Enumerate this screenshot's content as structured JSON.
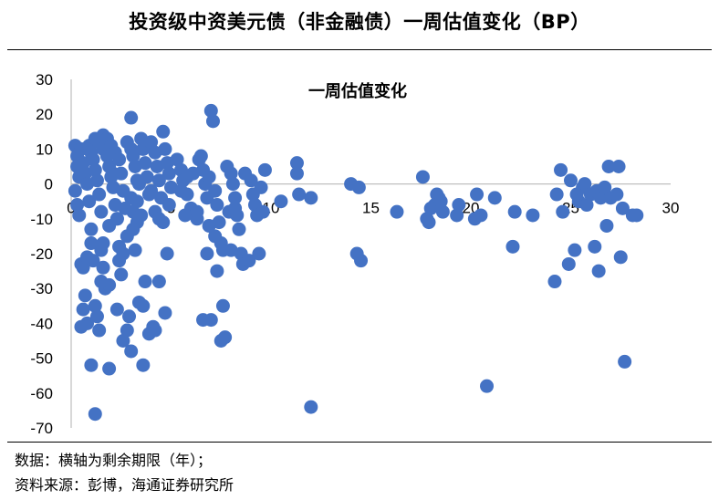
{
  "page_title": "投资级中资美元债（非金融债）一周估值变化（BP）",
  "footnotes": {
    "data_note": "数据：横轴为剩余期限（年）；",
    "source_note": "资料来源：彭博，海通证券研究所"
  },
  "chart_data": {
    "type": "scatter",
    "title": "一周估值变化",
    "xlabel": "",
    "ylabel": "",
    "xlim": [
      0,
      30
    ],
    "ylim": [
      -70,
      30
    ],
    "x_ticks": [
      0,
      5,
      10,
      15,
      20,
      25,
      30
    ],
    "y_ticks": [
      30,
      20,
      10,
      0,
      -10,
      -20,
      -30,
      -40,
      -50,
      -60,
      -70
    ],
    "grid": false,
    "legend": "none",
    "marker_color": "#4472C4",
    "points": [
      [
        0.2,
        11
      ],
      [
        0.3,
        8
      ],
      [
        0.3,
        5
      ],
      [
        0.4,
        2
      ],
      [
        0.2,
        -2
      ],
      [
        0.4,
        -9
      ],
      [
        0.5,
        -23
      ],
      [
        0.6,
        -24
      ],
      [
        0.7,
        -32
      ],
      [
        0.8,
        -40
      ],
      [
        0.5,
        -41
      ],
      [
        0.5,
        10
      ],
      [
        0.6,
        6
      ],
      [
        0.7,
        3
      ],
      [
        0.8,
        0
      ],
      [
        0.9,
        -5
      ],
      [
        1.0,
        -13
      ],
      [
        1.0,
        -17
      ],
      [
        1.1,
        -22
      ],
      [
        1.2,
        -35
      ],
      [
        1.3,
        -38
      ],
      [
        1.2,
        -66
      ],
      [
        0.9,
        11
      ],
      [
        1.0,
        9
      ],
      [
        1.1,
        7
      ],
      [
        1.2,
        4
      ],
      [
        1.3,
        1
      ],
      [
        1.4,
        -3
      ],
      [
        1.5,
        -8
      ],
      [
        1.5,
        -19
      ],
      [
        1.6,
        -24
      ],
      [
        1.7,
        -30
      ],
      [
        1.4,
        -42
      ],
      [
        1.2,
        13
      ],
      [
        1.4,
        12
      ],
      [
        1.6,
        10
      ],
      [
        1.8,
        8
      ],
      [
        1.9,
        5
      ],
      [
        2.0,
        2
      ],
      [
        2.1,
        -1
      ],
      [
        2.2,
        -6
      ],
      [
        2.3,
        -10
      ],
      [
        2.4,
        -18
      ],
      [
        1.9,
        -29
      ],
      [
        1.6,
        14
      ],
      [
        1.8,
        13
      ],
      [
        2.0,
        11
      ],
      [
        2.2,
        9
      ],
      [
        2.4,
        7
      ],
      [
        2.5,
        3
      ],
      [
        2.6,
        -2
      ],
      [
        2.7,
        -7
      ],
      [
        2.8,
        -15
      ],
      [
        2.3,
        -36
      ],
      [
        1.9,
        -53
      ],
      [
        2.8,
        12
      ],
      [
        3.0,
        10
      ],
      [
        3.1,
        8
      ],
      [
        3.2,
        5
      ],
      [
        3.3,
        1
      ],
      [
        3.0,
        -4
      ],
      [
        3.1,
        -8
      ],
      [
        3.3,
        -11
      ],
      [
        2.6,
        -20
      ],
      [
        2.5,
        -26
      ],
      [
        2.9,
        -38
      ],
      [
        2.8,
        -42
      ],
      [
        3.0,
        -48
      ],
      [
        3.5,
        13
      ],
      [
        3.6,
        10
      ],
      [
        3.7,
        6
      ],
      [
        3.8,
        2
      ],
      [
        3.9,
        -3
      ],
      [
        3.5,
        -9
      ],
      [
        3.2,
        -19
      ],
      [
        3.4,
        -34
      ],
      [
        3.6,
        -35
      ],
      [
        3.6,
        -52
      ],
      [
        3.4,
        0
      ],
      [
        3.0,
        19
      ],
      [
        3.7,
        -28
      ],
      [
        4.0,
        12
      ],
      [
        4.2,
        9
      ],
      [
        4.3,
        5
      ],
      [
        4.4,
        1
      ],
      [
        4.5,
        -4
      ],
      [
        4.2,
        -8
      ],
      [
        4.1,
        -41
      ],
      [
        4.6,
        15
      ],
      [
        4.7,
        10
      ],
      [
        4.8,
        6
      ],
      [
        4.9,
        3
      ],
      [
        5.0,
        -1
      ],
      [
        4.9,
        -6
      ],
      [
        4.6,
        -11
      ],
      [
        4.8,
        -20
      ],
      [
        4.4,
        -28
      ],
      [
        4.7,
        -37
      ],
      [
        4.2,
        -42
      ],
      [
        5.3,
        7
      ],
      [
        5.5,
        4
      ],
      [
        5.6,
        1
      ],
      [
        5.8,
        -3
      ],
      [
        6.0,
        -7
      ],
      [
        6.2,
        -9
      ],
      [
        6.3,
        -10
      ],
      [
        6.5,
        8
      ],
      [
        6.6,
        4
      ],
      [
        6.7,
        0
      ],
      [
        6.8,
        -4
      ],
      [
        7.0,
        21
      ],
      [
        7.1,
        18
      ],
      [
        6.9,
        2
      ],
      [
        7.2,
        -2
      ],
      [
        7.3,
        -6
      ],
      [
        7.4,
        -11
      ],
      [
        7.5,
        -17
      ],
      [
        7.3,
        -25
      ],
      [
        7.6,
        -19
      ],
      [
        7.6,
        -35
      ],
      [
        7.7,
        -44
      ],
      [
        7.5,
        -45
      ],
      [
        6.8,
        -20
      ],
      [
        6.6,
        -39
      ],
      [
        7.0,
        -39
      ],
      [
        6.9,
        -12
      ],
      [
        7.8,
        5
      ],
      [
        8.0,
        3
      ],
      [
        8.1,
        0
      ],
      [
        8.2,
        -4
      ],
      [
        8.3,
        -9
      ],
      [
        8.4,
        -13
      ],
      [
        8.5,
        -20
      ],
      [
        8.6,
        -23
      ],
      [
        8.9,
        -22
      ],
      [
        8.7,
        3
      ],
      [
        9.0,
        1
      ],
      [
        9.1,
        -3
      ],
      [
        9.2,
        -6
      ],
      [
        9.3,
        -9
      ],
      [
        9.4,
        -20
      ],
      [
        9.6,
        -8
      ],
      [
        9.5,
        -1
      ],
      [
        10.5,
        -5
      ],
      [
        9.7,
        4
      ],
      [
        11.3,
        6
      ],
      [
        11.3,
        3
      ],
      [
        11.4,
        -3
      ],
      [
        12.0,
        -4
      ],
      [
        12.0,
        -64
      ],
      [
        14.0,
        0
      ],
      [
        14.3,
        -20
      ],
      [
        14.5,
        -22
      ],
      [
        14.4,
        -1
      ],
      [
        16.3,
        -8
      ],
      [
        17.6,
        2
      ],
      [
        17.8,
        -10
      ],
      [
        17.9,
        -11
      ],
      [
        18.0,
        -7
      ],
      [
        18.2,
        -6
      ],
      [
        18.3,
        -3
      ],
      [
        18.4,
        -4
      ],
      [
        18.5,
        -5
      ],
      [
        18.6,
        -8
      ],
      [
        19.3,
        -9
      ],
      [
        19.4,
        -6
      ],
      [
        20.2,
        -10
      ],
      [
        20.5,
        -9
      ],
      [
        20.3,
        -3
      ],
      [
        20.8,
        -58
      ],
      [
        21.2,
        -4
      ],
      [
        22.2,
        -8
      ],
      [
        22.1,
        -18
      ],
      [
        23.1,
        -9
      ],
      [
        24.2,
        -28
      ],
      [
        24.3,
        -3
      ],
      [
        24.5,
        4
      ],
      [
        24.6,
        -8
      ],
      [
        24.9,
        -23
      ],
      [
        25.2,
        -19
      ],
      [
        25.0,
        1
      ],
      [
        25.3,
        -3
      ],
      [
        25.4,
        -5
      ],
      [
        25.6,
        -1
      ],
      [
        25.7,
        0
      ],
      [
        25.8,
        -6
      ],
      [
        26.0,
        -3
      ],
      [
        26.2,
        -18
      ],
      [
        26.4,
        -25
      ],
      [
        26.3,
        -2
      ],
      [
        26.5,
        -4
      ],
      [
        26.7,
        -1
      ],
      [
        26.8,
        -12
      ],
      [
        26.9,
        5
      ],
      [
        27.0,
        -4
      ],
      [
        27.3,
        -3
      ],
      [
        27.4,
        5
      ],
      [
        27.5,
        -21
      ],
      [
        27.7,
        -51
      ],
      [
        27.6,
        -7
      ],
      [
        28.1,
        -9
      ],
      [
        28.3,
        -9
      ],
      [
        0.8,
        -21
      ],
      [
        1.6,
        -17
      ],
      [
        2.3,
        -10
      ],
      [
        3.3,
        -5
      ],
      [
        4.4,
        -10
      ],
      [
        5.7,
        -9
      ],
      [
        6.4,
        7
      ],
      [
        7.9,
        -8
      ],
      [
        8.2,
        -7
      ],
      [
        0.3,
        -6
      ],
      [
        1.9,
        -12
      ],
      [
        2.6,
        -45
      ],
      [
        3.9,
        -43
      ],
      [
        1.0,
        -52
      ],
      [
        0.6,
        -36
      ],
      [
        2.4,
        -22
      ],
      [
        5.5,
        -2
      ],
      [
        6.1,
        3
      ],
      [
        7.2,
        -15
      ],
      [
        8.0,
        -19
      ],
      [
        3.1,
        -13
      ],
      [
        1.5,
        -28
      ],
      [
        2.1,
        3
      ],
      [
        4.0,
        -2
      ],
      [
        5.8,
        2
      ],
      [
        6.3,
        -8
      ]
    ]
  }
}
